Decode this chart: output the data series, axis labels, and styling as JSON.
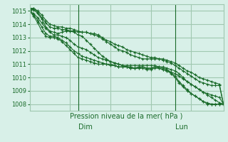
{
  "title": "",
  "xlabel": "Pression niveau de la mer( hPa )",
  "ylabel": "",
  "bg_color": "#d8f0e8",
  "grid_color": "#a0c8b0",
  "line_color": "#1a6b2a",
  "ylim": [
    1007.5,
    1015.5
  ],
  "yticks": [
    1008,
    1009,
    1010,
    1011,
    1012,
    1013,
    1014,
    1015
  ],
  "n_points": 49,
  "vline_positions": [
    12,
    36
  ],
  "vline_labels": [
    "Dim",
    "Lun"
  ],
  "series": [
    [
      1015.0,
      1014.8,
      1014.5,
      1014.1,
      1013.7,
      1013.4,
      1013.2,
      1013.2,
      1013.1,
      1013.0,
      1012.8,
      1012.5,
      1012.3,
      1012.2,
      1012.1,
      1011.9,
      1011.7,
      1011.5,
      1011.4,
      1011.3,
      1011.2,
      1011.1,
      1011.0,
      1010.9,
      1010.8,
      1010.8,
      1010.7,
      1010.7,
      1010.8,
      1010.7,
      1010.7,
      1010.8,
      1010.7,
      1010.6,
      1010.5,
      1010.4,
      1010.3,
      1010.1,
      1009.9,
      1009.7,
      1009.5,
      1009.3,
      1009.1,
      1008.9,
      1008.7,
      1008.5,
      1008.3,
      1008.1,
      1008.0
    ],
    [
      1015.0,
      1014.7,
      1014.3,
      1013.8,
      1013.3,
      1013.1,
      1013.1,
      1013.0,
      1012.8,
      1012.6,
      1012.3,
      1012.0,
      1011.8,
      1011.6,
      1011.5,
      1011.4,
      1011.3,
      1011.2,
      1011.1,
      1011.0,
      1010.9,
      1010.9,
      1010.8,
      1010.8,
      1010.8,
      1010.7,
      1010.7,
      1010.7,
      1010.7,
      1010.6,
      1010.6,
      1010.7,
      1010.7,
      1010.6,
      1010.5,
      1010.3,
      1010.0,
      1009.6,
      1009.3,
      1009.0,
      1008.8,
      1008.6,
      1008.4,
      1008.2,
      1008.0,
      1008.0,
      1008.0,
      1008.0,
      1008.0
    ],
    [
      1015.0,
      1014.6,
      1014.1,
      1013.5,
      1013.1,
      1013.0,
      1013.0,
      1012.9,
      1012.7,
      1012.4,
      1012.1,
      1011.8,
      1011.5,
      1011.4,
      1011.3,
      1011.2,
      1011.1,
      1011.0,
      1011.0,
      1011.0,
      1011.0,
      1010.9,
      1010.8,
      1010.8,
      1010.8,
      1010.7,
      1010.7,
      1010.8,
      1010.8,
      1010.7,
      1010.7,
      1010.8,
      1010.8,
      1010.7,
      1010.6,
      1010.4,
      1010.1,
      1009.7,
      1009.4,
      1009.1,
      1008.8,
      1008.6,
      1008.4,
      1008.2,
      1008.1,
      1008.0,
      1008.0,
      1008.0,
      1008.0
    ],
    [
      1015.1,
      1015.1,
      1014.8,
      1014.4,
      1013.8,
      1013.5,
      1013.4,
      1013.3,
      1013.4,
      1013.5,
      1013.5,
      1013.4,
      1013.2,
      1013.1,
      1012.8,
      1012.5,
      1012.2,
      1011.9,
      1011.6,
      1011.4,
      1011.2,
      1011.1,
      1011.0,
      1010.9,
      1010.9,
      1010.9,
      1010.9,
      1010.9,
      1010.9,
      1010.9,
      1010.9,
      1010.9,
      1010.8,
      1010.8,
      1010.7,
      1010.6,
      1010.5,
      1010.3,
      1010.0,
      1009.7,
      1009.5,
      1009.3,
      1009.1,
      1008.9,
      1008.8,
      1008.7,
      1008.6,
      1008.5,
      1008.0
    ],
    [
      1015.2,
      1015.2,
      1014.9,
      1014.5,
      1014.1,
      1013.8,
      1013.7,
      1013.7,
      1013.6,
      1013.6,
      1013.5,
      1013.5,
      1013.4,
      1013.4,
      1013.4,
      1013.3,
      1013.2,
      1013.1,
      1012.9,
      1012.7,
      1012.5,
      1012.3,
      1012.1,
      1012.0,
      1011.9,
      1011.7,
      1011.6,
      1011.5,
      1011.4,
      1011.4,
      1011.4,
      1011.4,
      1011.4,
      1011.3,
      1011.2,
      1011.1,
      1010.9,
      1010.7,
      1010.5,
      1010.3,
      1010.1,
      1009.9,
      1009.7,
      1009.6,
      1009.5,
      1009.4,
      1009.4,
      1009.4,
      1008.0
    ],
    [
      1015.1,
      1015.2,
      1015.0,
      1014.7,
      1014.3,
      1014.0,
      1013.9,
      1013.8,
      1013.8,
      1013.7,
      1013.7,
      1013.6,
      1013.5,
      1013.4,
      1013.4,
      1013.3,
      1013.3,
      1013.2,
      1013.0,
      1012.8,
      1012.7,
      1012.5,
      1012.4,
      1012.3,
      1012.1,
      1012.0,
      1011.9,
      1011.8,
      1011.7,
      1011.6,
      1011.5,
      1011.5,
      1011.4,
      1011.4,
      1011.3,
      1011.2,
      1011.1,
      1010.9,
      1010.7,
      1010.5,
      1010.4,
      1010.2,
      1010.0,
      1009.9,
      1009.8,
      1009.7,
      1009.6,
      1009.5,
      1008.0
    ]
  ]
}
